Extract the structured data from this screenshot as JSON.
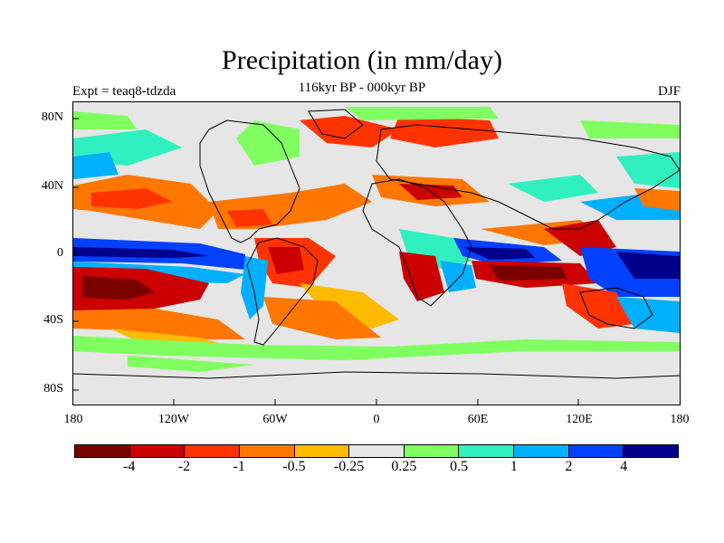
{
  "title": "Precipitation (in mm/day)",
  "subtitle": "116kyr BP - 000kyr BP",
  "left_label": "Expt = teaq8-tdzda",
  "right_label": "DJF",
  "lat_labels": [
    "80N",
    "40N",
    "0",
    "40S",
    "80S"
  ],
  "lon_labels": [
    "180",
    "120W",
    "60W",
    "0",
    "60E",
    "120E",
    "180"
  ],
  "colorbar": {
    "colors": [
      "#7a0000",
      "#cc0000",
      "#ff3300",
      "#ff7700",
      "#ffbb00",
      "#e6e6e6",
      "#80ff60",
      "#30f0c0",
      "#00b0ff",
      "#0040ff",
      "#00008a"
    ],
    "labels": [
      "-4",
      "-2",
      "-1",
      "-0.5",
      "-0.25",
      "0.25",
      "0.5",
      "1",
      "2",
      "4"
    ]
  },
  "palette": {
    "ocean_background": "#e6e6e6",
    "coastline": "#000000"
  }
}
